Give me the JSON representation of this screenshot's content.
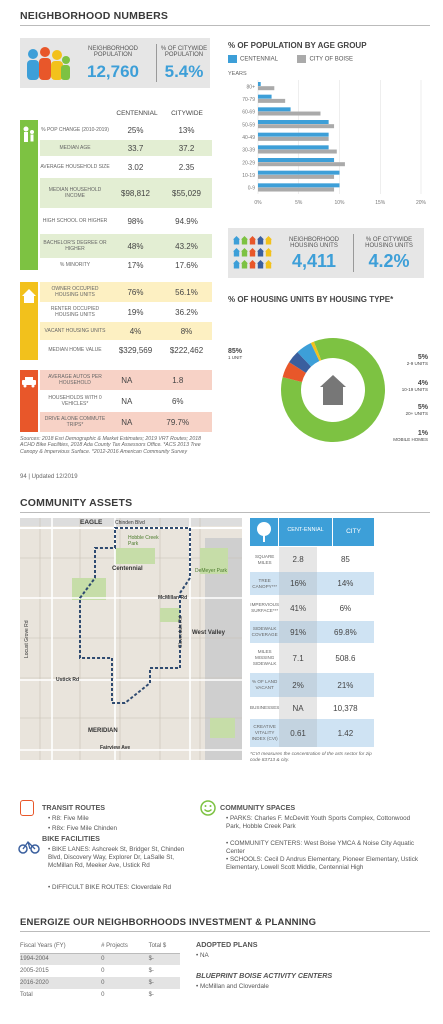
{
  "neighborhood_numbers": {
    "title": "NEIGHBORHOOD NUMBERS",
    "population": {
      "label": "NEIGHBORHOOD POPULATION",
      "value": "12,760",
      "pct_label": "% OF CITYWIDE POPULATION",
      "pct": "5.4%"
    },
    "table_headers": {
      "a": "CENTENNIAL",
      "b": "CITYWIDE"
    },
    "demo_rows": [
      {
        "label": "% POP CHANGE (2010-2019)",
        "a": "25%",
        "b": "13%"
      },
      {
        "label": "MEDIAN AGE",
        "a": "33.7",
        "b": "37.2"
      },
      {
        "label": "AVERAGE HOUSEHOLD SIZE",
        "a": "3.02",
        "b": "2.35"
      },
      {
        "label": "MEDIAN HOUSEHOLD INCOME",
        "a": "$98,812",
        "b": "$55,029"
      },
      {
        "label": "HIGH SCHOOL OR HIGHER",
        "a": "98%",
        "b": "94.9%"
      },
      {
        "label": "BACHELOR'S DEGREE OR HIGHER",
        "a": "48%",
        "b": "43.2%"
      },
      {
        "label": "% MINORITY",
        "a": "17%",
        "b": "17.6%"
      }
    ],
    "housing_rows": [
      {
        "label": "OWNER OCCUPIED HOUSING UNITS",
        "a": "76%",
        "b": "56.1%"
      },
      {
        "label": "RENTER OCCUPIED HOUSING UNITS",
        "a": "19%",
        "b": "36.2%"
      },
      {
        "label": "VACANT HOUSING UNITS",
        "a": "4%",
        "b": "8%"
      },
      {
        "label": "MEDIAN HOME VALUE",
        "a": "$329,569",
        "b": "$222,462"
      }
    ],
    "auto_rows": [
      {
        "label": "AVERAGE AUTOS PER HOUSEHOLD",
        "a": "NA",
        "b": "1.8"
      },
      {
        "label": "HOUSEHOLDS WITH 0 VEHICLES*",
        "a": "NA",
        "b": "6%"
      },
      {
        "label": "DRIVE ALONE COMMUTE TRIPS*",
        "a": "NA",
        "b": "79.7%"
      }
    ],
    "sources": "Sources: 2018 Esri Demographic & Market Estimates; 2019 VRT Routes; 2018 ACHD Bike Facilities, 2018 Ada County Tax Assessors Office. *ACS 2013 Tree Canopy & Impervious Surface. *2012-2016 American Community Survey",
    "page_footer": "94 | Updated 12/2019"
  },
  "age_chart_title": "% OF POPULATION BY AGE GROUP",
  "chart_data": [
    {
      "type": "bar",
      "orientation": "horizontal",
      "title": "% OF POPULATION BY AGE GROUP",
      "ylabel": "YEARS",
      "categories": [
        "80+",
        "70-79",
        "60-69",
        "50-59",
        "40-49",
        "30-39",
        "20-29",
        "10-19",
        "0-9"
      ],
      "series": [
        {
          "name": "CENTENNIAL",
          "values": [
            0.5,
            2.5,
            6,
            13,
            13,
            13,
            14,
            15,
            15
          ]
        },
        {
          "name": "CITY OF BOISE",
          "values": [
            3,
            5,
            11.5,
            14,
            13,
            14.5,
            16,
            14,
            14
          ]
        }
      ],
      "xlim": [
        0,
        30
      ],
      "xticks": [
        "0%",
        "5%",
        "10%",
        "15%",
        "20%"
      ],
      "colors": {
        "CENTENNIAL": "#3d9fd8",
        "CITY OF BOISE": "#aaaaaa"
      }
    },
    {
      "type": "pie",
      "title": "% OF HOUSING UNITS BY HOUSING TYPE*",
      "slices": [
        {
          "label": "1 UNIT",
          "value": 85,
          "color": "#7dc242"
        },
        {
          "label": "2-9 UNITS",
          "value": 5,
          "color": "#e8572a"
        },
        {
          "label": "10-19 UNITS",
          "value": 4,
          "color": "#3a5f9e"
        },
        {
          "label": "20+ UNITS",
          "value": 5,
          "color": "#3d9fd8"
        },
        {
          "label": "MOBILE HOMES",
          "value": 1,
          "color": "#f2c11c"
        }
      ]
    }
  ],
  "housing_units": {
    "label": "NEIGHBORHOOD HOUSING UNITS",
    "value": "4,411",
    "pct_label": "% OF CITYWIDE HOUSING UNITS",
    "pct": "4.2%"
  },
  "donut_labels": [
    {
      "pct": "85%",
      "name": "1 UNIT"
    },
    {
      "pct": "5%",
      "name": "2-9 UNITS"
    },
    {
      "pct": "4%",
      "name": "10-19 UNITS"
    },
    {
      "pct": "5%",
      "name": "20+ UNITS"
    },
    {
      "pct": "1%",
      "name": "MOBILE HOMES"
    }
  ],
  "community_assets": {
    "title": "COMMUNITY ASSETS",
    "map_labels": {
      "eagle": "EAGLE",
      "chinden": "Chinden Blvd",
      "hobble": "Hobble Creek Park",
      "centennial": "Centennial",
      "demeyer": "DeMeyer Park",
      "mcmillan": "McMillan Rd",
      "west_valley": "West Valley",
      "locust": "Locust Grove Rd",
      "ustick": "Ustick Rd",
      "meridian": "MERIDIAN",
      "fairview": "Fairview Ave",
      "cloverdale": "Cloverdale Rd",
      "maple": "Maple Grove Rd"
    },
    "headers": {
      "a": "CENT-ENNIAL",
      "b": "CITY"
    },
    "rows": [
      {
        "label": "SQUARE MILES",
        "a": "2.8",
        "b": "85"
      },
      {
        "label": "TREE CANOPY***",
        "a": "16%",
        "b": "14%"
      },
      {
        "label": "IMPERVIOUS SURFACE***",
        "a": "41%",
        "b": "6%"
      },
      {
        "label": "SIDEWALK COVERAGE",
        "a": "91%",
        "b": "69.8%"
      },
      {
        "label": "MILES MISSING SIDEWALK",
        "a": "7.1",
        "b": "508.6"
      },
      {
        "label": "% OF LAND VACANT",
        "a": "2%",
        "b": "21%"
      },
      {
        "label": "BUSINESSES",
        "a": "NA",
        "b": "10,378"
      },
      {
        "label": "CREATIVE VITALITY INDEX (CVI)",
        "a": "0.61",
        "b": "1.42"
      }
    ],
    "cvi_note": "*CVI measures the concentration of the arts sector for zip code 83713 & city."
  },
  "transit": {
    "title": "TRANSIT ROUTES",
    "items": [
      "• R8: Five Mile",
      "• R8x: Five Mile Chinden"
    ]
  },
  "bike": {
    "title": "BIKE FACILITIES",
    "lanes": "• BIKE LANES: Ashcreek St, Bridger St, Chinden Blvd, Discovery Way, Explorer Dr, LaSalle St, McMillan Rd, Meeker Ave, Ustick Rd",
    "difficult": "• DIFFICULT BIKE ROUTES: Cloverdale Rd"
  },
  "community_spaces": {
    "title": "COMMUNITY SPACES",
    "parks": "• PARKS: Charles F. McDevitt Youth Sports Complex, Cottonwood Park, Hobble Creek Park",
    "centers": "• COMMUNITY CENTERS: West Boise YMCA & Noise City Aquatic Center",
    "schools": "• SCHOOLS: Cecil D Andrus Elementary, Pioneer Elementary, Ustick Elementary, Lowell Scott Middle, Centennial High"
  },
  "energize": {
    "title": "ENERGIZE OUR NEIGHBORHOODS INVESTMENT & PLANNING",
    "headers": [
      "Fiscal Years (FY)",
      "# Projects",
      "Total $"
    ],
    "rows": [
      [
        "1994-2004",
        "0",
        "$-"
      ],
      [
        "2005-2015",
        "0",
        "$-"
      ],
      [
        "2016-2020",
        "0",
        "$-"
      ],
      [
        "Total",
        "0",
        "$-"
      ]
    ],
    "adopted_title": "ADOPTED PLANS",
    "adopted": "• NA",
    "blueprint_title": "BLUEPRINT BOISE ACTIVITY CENTERS",
    "blueprint": "• McMillan and Cloverdale"
  },
  "legend": {
    "centennial": "CENTENNIAL",
    "boise": "CITY OF BOISE",
    "years": "YEARS"
  }
}
